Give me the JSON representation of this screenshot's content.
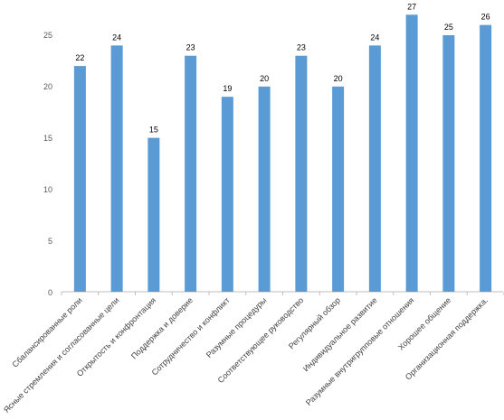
{
  "chart_data": {
    "type": "bar",
    "categories": [
      "Сбалансированные роли",
      "Ясные стремления и согласованные цели",
      "Открытость и конфронтация",
      "Поддержка и доверие",
      "Сотрудничество и конфликт",
      "Разумные процедуры",
      "Соответствующее руководство",
      "Регулярный обзор",
      "Индивидуальное развитие",
      "Разумные внутригрупповые отношения",
      "Хорошее общение",
      "Организационная поддержка."
    ],
    "values": [
      22,
      24,
      15,
      23,
      19,
      20,
      23,
      20,
      24,
      27,
      25,
      26
    ],
    "data_labels": [
      "22",
      "24",
      "15",
      "23",
      "19",
      "20",
      "23",
      "20",
      "24",
      "27",
      "25",
      "26"
    ],
    "ylim": [
      0,
      25
    ],
    "yticks": [
      "0",
      "5",
      "10",
      "15",
      "20",
      "25"
    ],
    "grid": false,
    "bar_color": "#5B9BD5",
    "axis_color": "#BFBFBF"
  }
}
